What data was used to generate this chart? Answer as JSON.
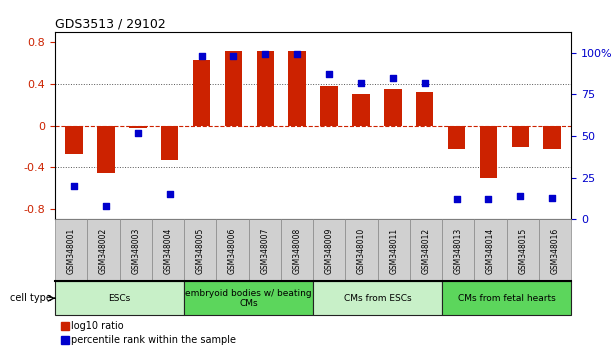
{
  "title": "GDS3513 / 29102",
  "samples": [
    "GSM348001",
    "GSM348002",
    "GSM348003",
    "GSM348004",
    "GSM348005",
    "GSM348006",
    "GSM348007",
    "GSM348008",
    "GSM348009",
    "GSM348010",
    "GSM348011",
    "GSM348012",
    "GSM348013",
    "GSM348014",
    "GSM348015",
    "GSM348016"
  ],
  "log10_ratio": [
    -0.27,
    -0.45,
    -0.02,
    -0.33,
    0.63,
    0.72,
    0.72,
    0.72,
    0.38,
    0.3,
    0.35,
    0.32,
    -0.22,
    -0.5,
    -0.2,
    -0.22
  ],
  "percentile_rank": [
    20,
    8,
    52,
    15,
    98,
    98,
    99,
    99,
    87,
    82,
    85,
    82,
    12,
    12,
    14,
    13
  ],
  "cell_type_groups": [
    {
      "label": "ESCs",
      "start": 0,
      "end": 3,
      "color": "#c8f0c8"
    },
    {
      "label": "embryoid bodies w/ beating\nCMs",
      "start": 4,
      "end": 7,
      "color": "#5cd65c"
    },
    {
      "label": "CMs from ESCs",
      "start": 8,
      "end": 11,
      "color": "#c8f0c8"
    },
    {
      "label": "CMs from fetal hearts",
      "start": 12,
      "end": 15,
      "color": "#5cd65c"
    }
  ],
  "bar_color": "#CC2200",
  "dot_color": "#0000CC",
  "ylim_left": [
    -0.9,
    0.9
  ],
  "ylim_right": [
    0,
    112.5
  ],
  "yticks_left": [
    -0.8,
    -0.4,
    0.0,
    0.4,
    0.8
  ],
  "ytick_labels_left": [
    "-0.8",
    "-0.4",
    "0",
    "0.4",
    "0.8"
  ],
  "yticks_right": [
    0,
    25,
    50,
    75,
    100
  ],
  "ytick_labels_right": [
    "0",
    "25",
    "50",
    "75",
    "100%"
  ],
  "zero_line_color": "#CC2200",
  "dotted_line_color": "#555555",
  "bg_color": "#ffffff",
  "cell_type_label": "cell type",
  "legend_ratio_label": "log10 ratio",
  "legend_percentile_label": "percentile rank within the sample",
  "sample_box_color": "#d0d0d0",
  "sample_box_edge": "#888888"
}
